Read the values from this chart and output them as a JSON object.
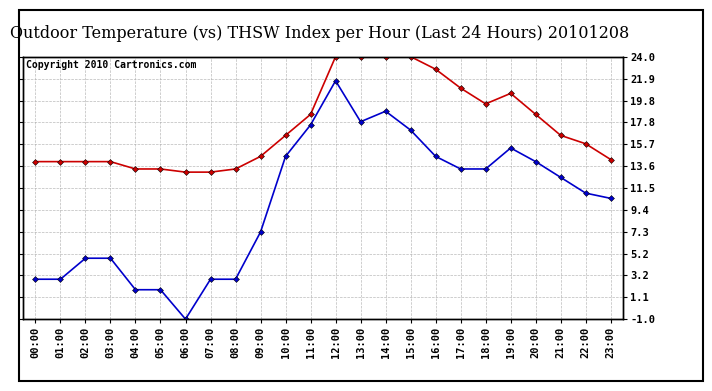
{
  "title": "Outdoor Temperature (vs) THSW Index per Hour (Last 24 Hours) 20101208",
  "copyright": "Copyright 2010 Cartronics.com",
  "hours": [
    "00:00",
    "01:00",
    "02:00",
    "03:00",
    "04:00",
    "05:00",
    "06:00",
    "07:00",
    "08:00",
    "09:00",
    "10:00",
    "11:00",
    "12:00",
    "13:00",
    "14:00",
    "15:00",
    "16:00",
    "17:00",
    "18:00",
    "19:00",
    "20:00",
    "21:00",
    "22:00",
    "23:00"
  ],
  "red_data": [
    14.0,
    14.0,
    14.0,
    14.0,
    13.3,
    13.3,
    13.0,
    13.0,
    13.3,
    14.5,
    16.5,
    18.5,
    24.0,
    24.0,
    24.0,
    24.0,
    22.8,
    21.0,
    19.5,
    20.5,
    18.5,
    16.5,
    15.7,
    14.2
  ],
  "blue_data": [
    2.8,
    2.8,
    4.8,
    4.8,
    1.8,
    1.8,
    -1.0,
    2.8,
    2.8,
    7.3,
    14.5,
    17.5,
    21.7,
    17.8,
    18.8,
    17.0,
    14.5,
    13.3,
    13.3,
    15.3,
    14.0,
    12.5,
    11.0,
    10.5
  ],
  "red_color": "#cc0000",
  "blue_color": "#0000cc",
  "marker": "D",
  "marker_size": 3,
  "ylim": [
    -1.0,
    24.0
  ],
  "yticks": [
    -1.0,
    1.1,
    3.2,
    5.2,
    7.3,
    9.4,
    11.5,
    13.6,
    15.7,
    17.8,
    19.8,
    21.9,
    24.0
  ],
  "ytick_labels": [
    "-1.0",
    "1.1",
    "3.2",
    "5.2",
    "7.3",
    "9.4",
    "11.5",
    "13.6",
    "15.7",
    "17.8",
    "19.8",
    "21.9",
    "24.0"
  ],
  "bg_color": "#ffffff",
  "grid_color": "#aaaaaa",
  "title_fontsize": 11.5,
  "copyright_fontsize": 7,
  "tick_fontsize": 7.5,
  "linewidth": 1.2
}
